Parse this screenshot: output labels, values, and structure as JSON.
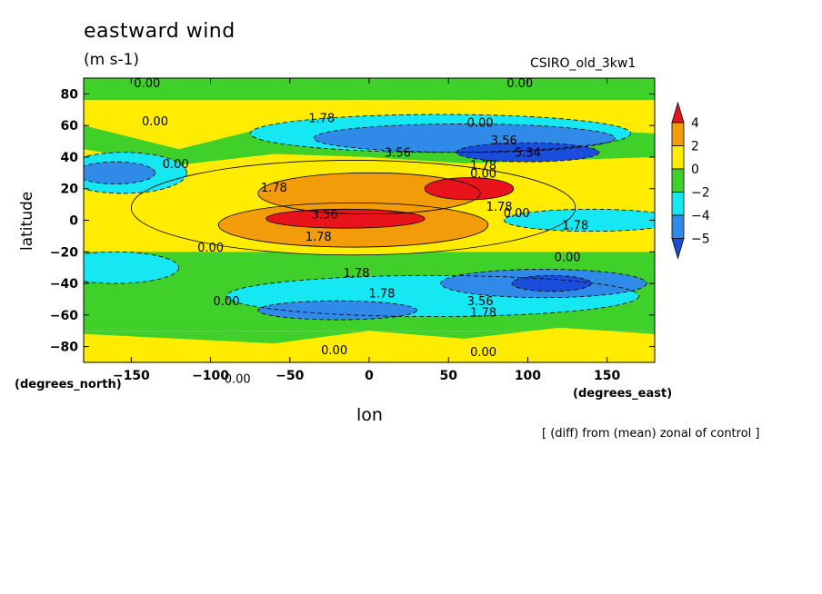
{
  "title": "eastward wind",
  "units": "(m s-1)",
  "model_label": "CSIRO_old_3kw1",
  "footnote": "[ (diff) from (mean) zonal of control ]",
  "chart_data": {
    "type": "contour",
    "title": "eastward wind",
    "xlabel": "lon",
    "ylabel": "latitude",
    "x_unit_label": "(degrees_east)",
    "y_unit_label": "(degrees_north)",
    "xlim": [
      -180,
      180
    ],
    "ylim": [
      -90,
      90
    ],
    "x_ticks": [
      -150,
      -100,
      -50,
      0,
      50,
      100,
      150
    ],
    "y_ticks": [
      -80,
      -60,
      -40,
      -20,
      0,
      20,
      40,
      60,
      80
    ],
    "colorbar": {
      "labels": [
        "4",
        "2",
        "0",
        "−2",
        "−4",
        "−5"
      ],
      "colors": [
        "#e8131b",
        "#f29c0a",
        "#ffec00",
        "#3fd02a",
        "#15e8f2",
        "#2f8ae8",
        "#1b4ddb"
      ]
    },
    "contour_labels": [
      {
        "text": "0.00",
        "lon": -140,
        "lat": 87
      },
      {
        "text": "0.00",
        "lon": 95,
        "lat": 87
      },
      {
        "text": "0.00",
        "lon": -135,
        "lat": 63
      },
      {
        "text": "1.78",
        "lon": -30,
        "lat": 65
      },
      {
        "text": "0.00",
        "lon": 70,
        "lat": 62
      },
      {
        "text": "3.56",
        "lon": 85,
        "lat": 51
      },
      {
        "text": "3.56",
        "lon": 18,
        "lat": 43
      },
      {
        "text": "5.34",
        "lon": 100,
        "lat": 43
      },
      {
        "text": "0.00",
        "lon": -122,
        "lat": 36
      },
      {
        "text": "1.78",
        "lon": 72,
        "lat": 35
      },
      {
        "text": "0.00",
        "lon": 72,
        "lat": 30
      },
      {
        "text": "1.78",
        "lon": -60,
        "lat": 21
      },
      {
        "text": "1.78",
        "lon": 82,
        "lat": 9
      },
      {
        "text": "0.00",
        "lon": 93,
        "lat": 5
      },
      {
        "text": "3.56",
        "lon": -28,
        "lat": 4
      },
      {
        "text": "1.78",
        "lon": 130,
        "lat": -3
      },
      {
        "text": "1.78",
        "lon": -32,
        "lat": -10
      },
      {
        "text": "0.00",
        "lon": -100,
        "lat": -17
      },
      {
        "text": "0.00",
        "lon": 125,
        "lat": -23
      },
      {
        "text": "1.78",
        "lon": -8,
        "lat": -33
      },
      {
        "text": "1.78",
        "lon": 8,
        "lat": -46
      },
      {
        "text": "0.00",
        "lon": -90,
        "lat": -51
      },
      {
        "text": "3.56",
        "lon": 70,
        "lat": -51
      },
      {
        "text": "1.78",
        "lon": 72,
        "lat": -58
      },
      {
        "text": "0.00",
        "lon": -22,
        "lat": -82
      },
      {
        "text": "0.00",
        "lon": 72,
        "lat": -83
      },
      {
        "text": "0.00",
        "lon": -83,
        "lat": -100
      }
    ],
    "fields": [
      {
        "level": 2,
        "lon": 0,
        "lat": 17,
        "rlon": 70,
        "rlat": 13
      },
      {
        "level": 2,
        "lon": -10,
        "lat": -3,
        "rlon": 85,
        "rlat": 14
      },
      {
        "level": 1,
        "lon": -10,
        "lat": 8,
        "rlon": 140,
        "rlat": 30
      },
      {
        "level": 3,
        "lon": 63,
        "lat": 20,
        "rlon": 28,
        "rlat": 7
      },
      {
        "level": 3,
        "lon": -15,
        "lat": 1,
        "rlon": 50,
        "rlat": 6
      },
      {
        "level": -1,
        "lon": 45,
        "lat": 55,
        "rlon": 120,
        "rlat": 12
      },
      {
        "level": -2,
        "lon": 60,
        "lat": 52,
        "rlon": 95,
        "rlat": 9
      },
      {
        "level": -3,
        "lon": 100,
        "lat": 43,
        "rlon": 45,
        "rlat": 6
      },
      {
        "level": -1,
        "lon": -155,
        "lat": 30,
        "rlon": 40,
        "rlat": 13
      },
      {
        "level": -2,
        "lon": -160,
        "lat": 30,
        "rlon": 25,
        "rlat": 7
      },
      {
        "level": -1,
        "lon": 40,
        "lat": -48,
        "rlon": 130,
        "rlat": 13
      },
      {
        "level": -2,
        "lon": 110,
        "lat": -40,
        "rlon": 65,
        "rlat": 9
      },
      {
        "level": -3,
        "lon": 115,
        "lat": -40,
        "rlon": 25,
        "rlat": 5
      },
      {
        "level": -2,
        "lon": -20,
        "lat": -57,
        "rlon": 50,
        "rlat": 6
      },
      {
        "level": -1,
        "lon": -160,
        "lat": -30,
        "rlon": 40,
        "rlat": 10
      },
      {
        "level": -1,
        "lon": 140,
        "lat": 0,
        "rlon": 55,
        "rlat": 7
      }
    ]
  }
}
